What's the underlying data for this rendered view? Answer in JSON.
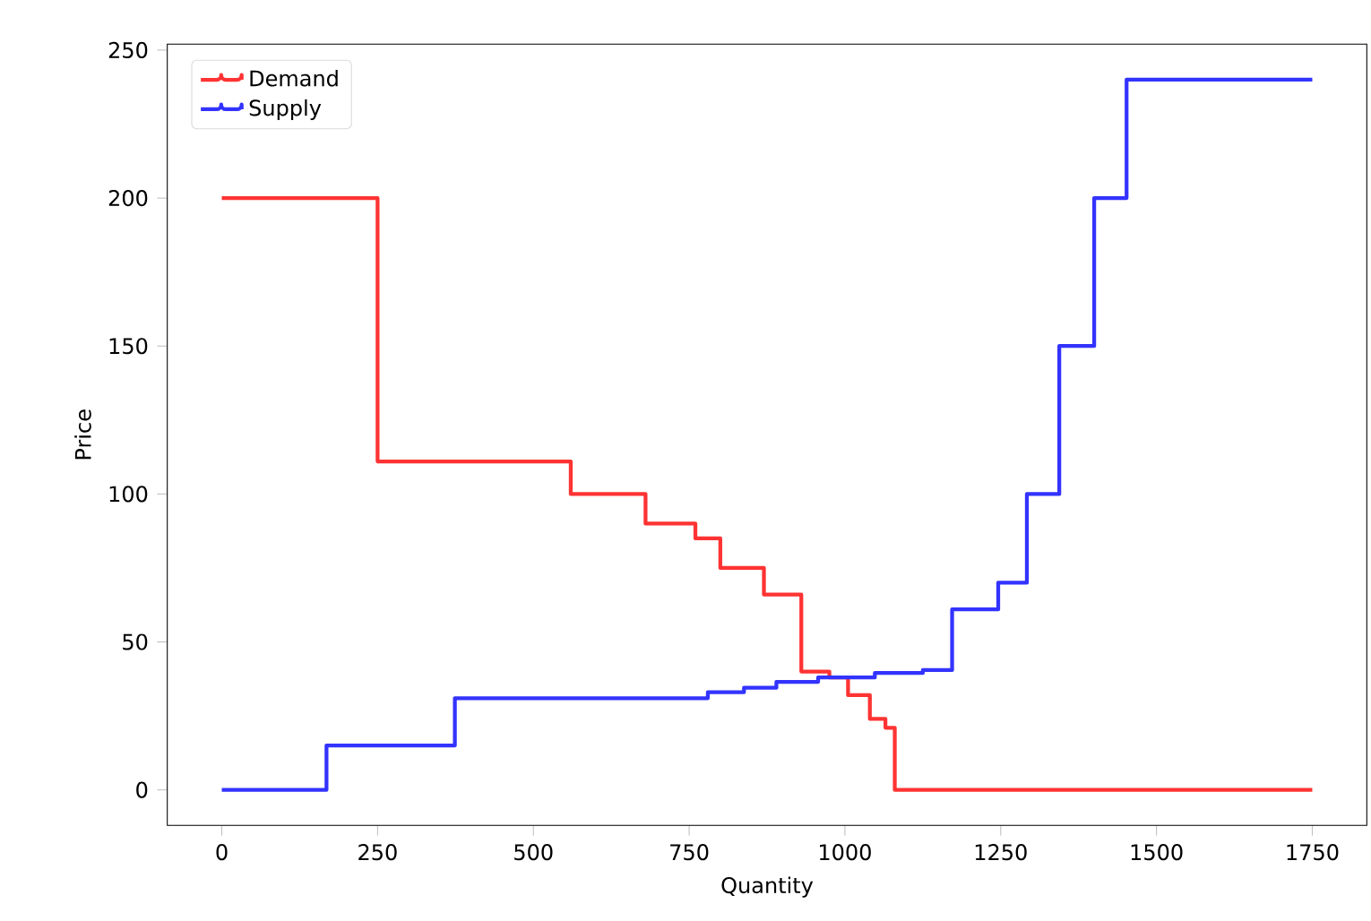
{
  "chart_data": {
    "type": "step",
    "xlabel": "Quantity",
    "ylabel": "Price",
    "xlim": [
      -87.5,
      1837.5
    ],
    "ylim": [
      -12,
      252
    ],
    "xticks": [
      0,
      250,
      500,
      750,
      1000,
      1250,
      1500,
      1750
    ],
    "yticks": [
      0,
      50,
      100,
      150,
      200,
      250
    ],
    "legend": "top left",
    "grid": false,
    "marker": "none",
    "line_style": "solid",
    "series": [
      {
        "name": "Demand",
        "color": "#ff3333",
        "x": [
          0,
          250,
          560,
          680,
          760,
          800,
          870,
          930,
          975,
          1005,
          1040,
          1065,
          1080,
          1750
        ],
        "values": [
          200,
          111,
          100,
          90,
          85,
          75,
          66,
          40,
          38,
          32,
          24,
          21,
          0,
          0
        ]
      },
      {
        "name": "Supply",
        "color": "#3333ff",
        "x": [
          0,
          168,
          374,
          780,
          838,
          890,
          957,
          1048,
          1125,
          1172,
          1246,
          1292,
          1344,
          1400,
          1452,
          1750
        ],
        "values": [
          0,
          15,
          31,
          33,
          34.5,
          36.5,
          38,
          39.5,
          40.5,
          61,
          70,
          100,
          150,
          200,
          240,
          240
        ]
      }
    ]
  }
}
